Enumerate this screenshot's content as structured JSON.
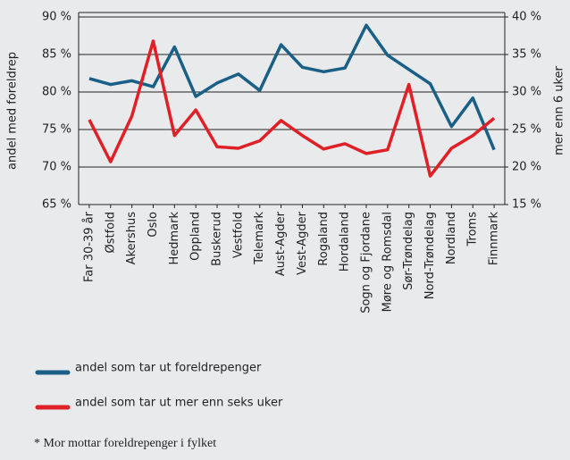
{
  "chart_data": {
    "type": "line",
    "categories": [
      "Far 30-39 år",
      "Østfold",
      "Akershus",
      "Oslo",
      "Hedmark",
      "Oppland",
      "Buskerud",
      "Vestfold",
      "Telemark",
      "Aust-Agder",
      "Vest-Agder",
      "Rogaland",
      "Hordaland",
      "Sogn og Fjordane",
      "Møre og Romsdal",
      "Sør-Trøndelag",
      "Nord-Trøndelag",
      "Nordland",
      "Troms",
      "Finnmark"
    ],
    "series": [
      {
        "name": "andel som tar ut foreldrepenger",
        "color": "#1a5f86",
        "values": [
          81.8,
          81.0,
          81.5,
          80.7,
          86.0,
          79.4,
          81.2,
          82.4,
          80.2,
          86.3,
          83.3,
          82.7,
          83.2,
          88.9,
          84.9,
          83.0,
          81.1,
          75.4,
          79.2,
          72.3
        ]
      },
      {
        "name": "andel som tar ut mer enn seks uker",
        "color": "#e02027",
        "axis": "y2",
        "values": [
          26.3,
          20.7,
          26.8,
          36.8,
          24.2,
          27.6,
          22.7,
          22.5,
          23.5,
          26.2,
          24.2,
          22.4,
          23.1,
          21.8,
          22.3,
          31.0,
          18.8,
          22.5,
          24.2,
          26.5
        ]
      }
    ],
    "ylabel": "andel med foreldrep",
    "y2label": "mer enn 6 uker",
    "ylim": [
      65,
      90
    ],
    "yticks": [
      {
        "value": 65,
        "label": "65 %"
      },
      {
        "value": 70,
        "label": "70 %"
      },
      {
        "value": 75,
        "label": "75 %"
      },
      {
        "value": 80,
        "label": "80 %"
      },
      {
        "value": 85,
        "label": "85 %"
      },
      {
        "value": 90,
        "label": "90 %"
      }
    ],
    "y2lim": [
      15,
      40
    ],
    "y2ticks": [
      {
        "value": 15,
        "label": "15 %"
      },
      {
        "value": 20,
        "label": "20 %"
      },
      {
        "value": 25,
        "label": "25 %"
      },
      {
        "value": 30,
        "label": "30 %"
      },
      {
        "value": 35,
        "label": "35 %"
      },
      {
        "value": 40,
        "label": "40 %"
      }
    ],
    "grid": true,
    "legend": "bottom",
    "footnote": "* Mor mottar foreldrepenger i fylket"
  }
}
